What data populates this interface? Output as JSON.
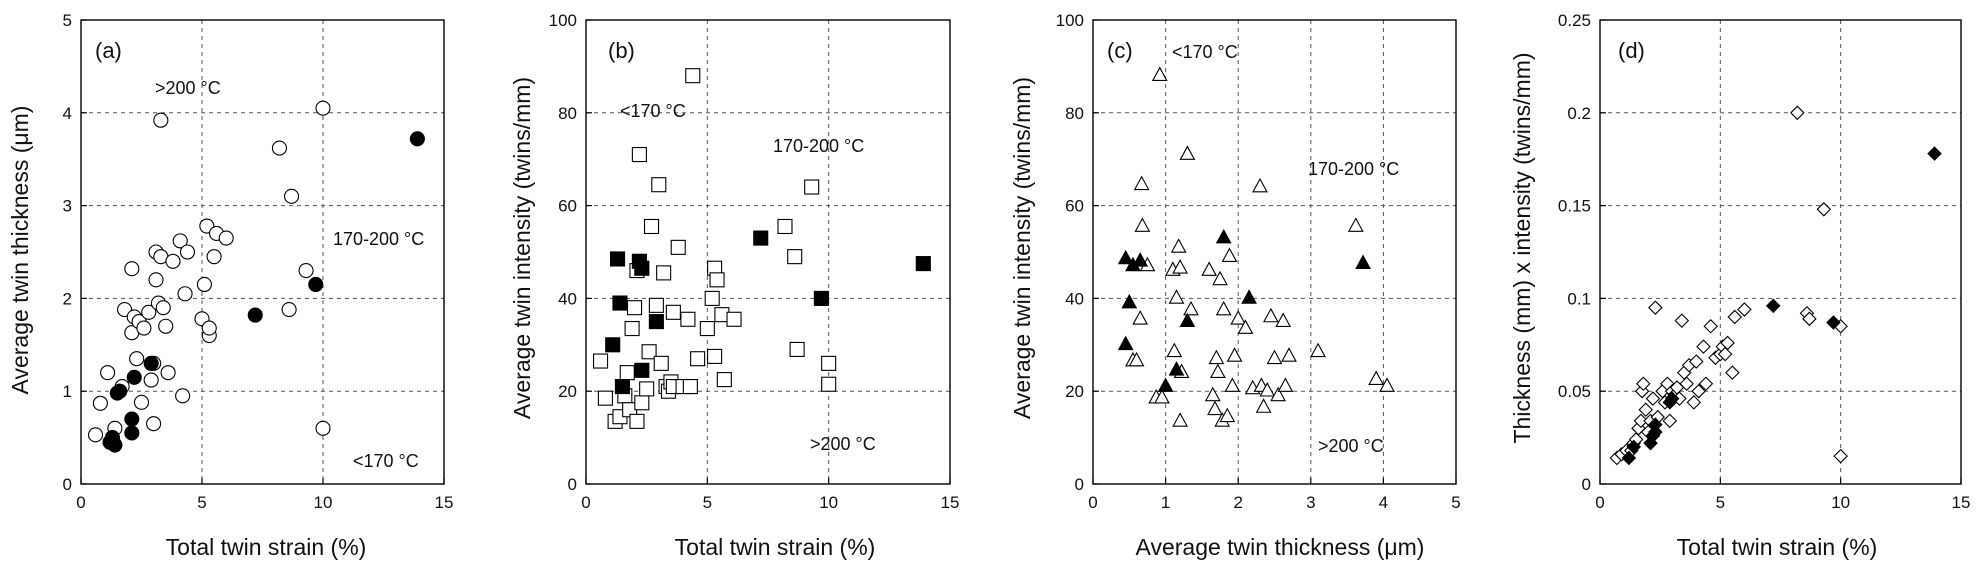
{
  "colors": {
    "mark": "#000000",
    "open_fill": "#ffffff",
    "grid": "#555555"
  },
  "chart_data": [
    {
      "type": "scatter",
      "panel_label": "(a)",
      "xlabel": "Total twin strain (%)",
      "ylabel": "Average twin thickness (μm)",
      "xlim": [
        0,
        15
      ],
      "ylim": [
        0,
        5
      ],
      "xticks": [
        0,
        5,
        10,
        15
      ],
      "yticks": [
        0,
        1,
        2,
        3,
        4,
        5
      ],
      "xtick_labels": [
        "0",
        "5",
        "10",
        "15"
      ],
      "ytick_labels": [
        "0",
        "1",
        "2",
        "3",
        "4",
        "5"
      ],
      "grid": true,
      "annotations": [
        ">200 °C",
        "170-200 °C",
        "<170 °C"
      ],
      "series": [
        {
          "marker": "circle",
          "filled": false,
          "points": [
            [
              0.6,
              0.53
            ],
            [
              0.8,
              0.87
            ],
            [
              1.1,
              1.2
            ],
            [
              1.4,
              0.6
            ],
            [
              1.7,
              1.05
            ],
            [
              1.8,
              1.88
            ],
            [
              2.1,
              1.63
            ],
            [
              2.1,
              2.32
            ],
            [
              2.2,
              1.8
            ],
            [
              2.3,
              1.35
            ],
            [
              2.4,
              1.75
            ],
            [
              2.5,
              0.88
            ],
            [
              2.6,
              1.68
            ],
            [
              2.8,
              1.85
            ],
            [
              2.9,
              1.12
            ],
            [
              3.0,
              1.3
            ],
            [
              3.0,
              0.65
            ],
            [
              3.1,
              2.2
            ],
            [
              3.1,
              2.5
            ],
            [
              3.2,
              1.95
            ],
            [
              3.3,
              2.45
            ],
            [
              3.3,
              3.92
            ],
            [
              3.4,
              1.9
            ],
            [
              3.5,
              1.7
            ],
            [
              3.6,
              1.2
            ],
            [
              3.8,
              2.4
            ],
            [
              4.1,
              2.62
            ],
            [
              4.2,
              0.95
            ],
            [
              4.3,
              2.05
            ],
            [
              4.4,
              2.5
            ],
            [
              5.0,
              1.78
            ],
            [
              5.1,
              2.15
            ],
            [
              5.2,
              2.78
            ],
            [
              5.3,
              1.6
            ],
            [
              5.3,
              1.68
            ],
            [
              5.5,
              2.45
            ],
            [
              5.6,
              2.7
            ],
            [
              6.0,
              2.65
            ],
            [
              8.2,
              3.62
            ],
            [
              8.6,
              1.88
            ],
            [
              8.7,
              3.1
            ],
            [
              9.3,
              2.3
            ],
            [
              10.0,
              4.05
            ],
            [
              10.0,
              0.6
            ]
          ]
        },
        {
          "marker": "circle",
          "filled": true,
          "points": [
            [
              1.2,
              0.45
            ],
            [
              1.3,
              0.5
            ],
            [
              1.4,
              0.42
            ],
            [
              1.5,
              0.98
            ],
            [
              1.6,
              1.0
            ],
            [
              2.1,
              0.55
            ],
            [
              2.1,
              0.7
            ],
            [
              2.2,
              1.15
            ],
            [
              2.9,
              1.3
            ],
            [
              7.2,
              1.82
            ],
            [
              9.7,
              2.15
            ],
            [
              13.9,
              3.72
            ]
          ]
        }
      ]
    },
    {
      "type": "scatter",
      "panel_label": "(b)",
      "xlabel": "Total twin strain (%)",
      "ylabel": "Average twin intensity (twins/mm)",
      "xlim": [
        0,
        15
      ],
      "ylim": [
        0,
        100
      ],
      "xticks": [
        0,
        5,
        10,
        15
      ],
      "yticks": [
        0,
        20,
        40,
        60,
        80,
        100
      ],
      "xtick_labels": [
        "0",
        "5",
        "10",
        "15"
      ],
      "ytick_labels": [
        "0",
        "20",
        "40",
        "60",
        "80",
        "100"
      ],
      "grid": true,
      "annotations": [
        "<170 °C",
        "170-200 °C",
        ">200 °C"
      ],
      "series": [
        {
          "marker": "square",
          "filled": false,
          "points": [
            [
              0.6,
              26.5
            ],
            [
              0.8,
              18.5
            ],
            [
              1.2,
              13.5
            ],
            [
              1.4,
              14.5
            ],
            [
              1.6,
              19.0
            ],
            [
              1.7,
              24.0
            ],
            [
              1.8,
              16.0
            ],
            [
              1.9,
              33.5
            ],
            [
              2.0,
              38.0
            ],
            [
              2.1,
              46.0
            ],
            [
              2.1,
              13.5
            ],
            [
              2.2,
              71.0
            ],
            [
              2.3,
              17.5
            ],
            [
              2.5,
              20.5
            ],
            [
              2.6,
              28.5
            ],
            [
              2.7,
              55.5
            ],
            [
              2.9,
              38.5
            ],
            [
              3.0,
              64.5
            ],
            [
              3.1,
              26.0
            ],
            [
              3.2,
              45.5
            ],
            [
              3.3,
              21.0
            ],
            [
              3.4,
              20.0
            ],
            [
              3.5,
              22.0
            ],
            [
              3.6,
              37.0
            ],
            [
              3.6,
              21.0
            ],
            [
              3.8,
              51.0
            ],
            [
              4.0,
              21.0
            ],
            [
              4.2,
              35.5
            ],
            [
              4.3,
              21.0
            ],
            [
              4.4,
              88.0
            ],
            [
              4.6,
              27.0
            ],
            [
              5.0,
              33.5
            ],
            [
              5.2,
              40.0
            ],
            [
              5.3,
              27.5
            ],
            [
              5.3,
              46.5
            ],
            [
              5.4,
              44.0
            ],
            [
              5.6,
              36.5
            ],
            [
              5.7,
              22.5
            ],
            [
              6.1,
              35.5
            ],
            [
              8.2,
              55.5
            ],
            [
              8.6,
              49.0
            ],
            [
              8.7,
              29.0
            ],
            [
              9.3,
              64.0
            ],
            [
              10.0,
              26.0
            ],
            [
              10.0,
              21.5
            ]
          ]
        },
        {
          "marker": "square",
          "filled": true,
          "points": [
            [
              1.1,
              30.0
            ],
            [
              1.3,
              48.5
            ],
            [
              1.4,
              39.0
            ],
            [
              1.5,
              21.0
            ],
            [
              2.2,
              48.0
            ],
            [
              2.3,
              46.5
            ],
            [
              2.3,
              24.5
            ],
            [
              2.9,
              35.0
            ],
            [
              7.2,
              53.0
            ],
            [
              9.7,
              40.0
            ],
            [
              13.9,
              47.5
            ]
          ]
        }
      ]
    },
    {
      "type": "scatter",
      "panel_label": "(c)",
      "xlabel": "Average twin thickness (μm)",
      "ylabel": "Average twin intensity (twins/mm)",
      "xlim": [
        0,
        5
      ],
      "ylim": [
        0,
        100
      ],
      "xticks": [
        0,
        1,
        2,
        3,
        4,
        5
      ],
      "yticks": [
        0,
        20,
        40,
        60,
        80,
        100
      ],
      "xtick_labels": [
        "0",
        "1",
        "2",
        "3",
        "4",
        "5"
      ],
      "ytick_labels": [
        "0",
        "20",
        "40",
        "60",
        "80",
        "100"
      ],
      "grid": true,
      "annotations": [
        "<170 °C",
        "170-200 °C",
        ">200 °C"
      ],
      "series": [
        {
          "marker": "triangle",
          "filled": false,
          "points": [
            [
              0.55,
              26.5
            ],
            [
              0.6,
              26.5
            ],
            [
              0.65,
              35.5
            ],
            [
              0.67,
              64.5
            ],
            [
              0.68,
              55.5
            ],
            [
              0.75,
              47.0
            ],
            [
              0.87,
              18.5
            ],
            [
              0.92,
              88.0
            ],
            [
              0.95,
              18.5
            ],
            [
              1.1,
              46.0
            ],
            [
              1.12,
              28.5
            ],
            [
              1.15,
              40.0
            ],
            [
              1.18,
              51.0
            ],
            [
              1.2,
              13.5
            ],
            [
              1.2,
              46.5
            ],
            [
              1.22,
              24.0
            ],
            [
              1.3,
              71.0
            ],
            [
              1.35,
              37.5
            ],
            [
              1.6,
              46.0
            ],
            [
              1.65,
              19.0
            ],
            [
              1.68,
              16.0
            ],
            [
              1.7,
              27.0
            ],
            [
              1.72,
              24.0
            ],
            [
              1.75,
              44.0
            ],
            [
              1.78,
              13.5
            ],
            [
              1.8,
              37.5
            ],
            [
              1.85,
              14.5
            ],
            [
              1.88,
              49.0
            ],
            [
              1.92,
              21.0
            ],
            [
              1.95,
              27.5
            ],
            [
              2.0,
              35.5
            ],
            [
              2.1,
              33.5
            ],
            [
              2.2,
              20.5
            ],
            [
              2.3,
              64.0
            ],
            [
              2.32,
              21.0
            ],
            [
              2.35,
              16.5
            ],
            [
              2.4,
              20.0
            ],
            [
              2.45,
              36.0
            ],
            [
              2.5,
              27.0
            ],
            [
              2.55,
              19.0
            ],
            [
              2.62,
              35.0
            ],
            [
              2.65,
              21.0
            ],
            [
              2.7,
              27.5
            ],
            [
              3.1,
              28.5
            ],
            [
              3.62,
              55.5
            ],
            [
              3.9,
              22.5
            ],
            [
              4.05,
              21.0
            ]
          ]
        },
        {
          "marker": "triangle",
          "filled": true,
          "points": [
            [
              0.45,
              30.0
            ],
            [
              0.45,
              48.5
            ],
            [
              0.5,
              39.0
            ],
            [
              0.55,
              47.0
            ],
            [
              0.65,
              48.0
            ],
            [
              1.0,
              21.0
            ],
            [
              1.15,
              24.5
            ],
            [
              1.3,
              35.0
            ],
            [
              1.8,
              53.0
            ],
            [
              2.15,
              40.0
            ],
            [
              3.72,
              47.5
            ]
          ]
        }
      ]
    },
    {
      "type": "scatter",
      "panel_label": "(d)",
      "xlabel": "Total twin strain (%)",
      "ylabel": "Thickness (mm) x intensity (twins/mm)",
      "xlim": [
        0,
        15
      ],
      "ylim": [
        0,
        0.25
      ],
      "xticks": [
        0,
        5,
        10,
        15
      ],
      "yticks": [
        0,
        0.05,
        0.1,
        0.15,
        0.2,
        0.25
      ],
      "xtick_labels": [
        "0",
        "5",
        "10",
        "15"
      ],
      "ytick_labels": [
        "0",
        "0.05",
        "0.1",
        "0.15",
        "0.2",
        "0.25"
      ],
      "grid": true,
      "annotations": [],
      "series": [
        {
          "marker": "diamond",
          "filled": false,
          "points": [
            [
              0.7,
              0.014
            ],
            [
              0.9,
              0.016
            ],
            [
              1.1,
              0.018
            ],
            [
              1.3,
              0.018
            ],
            [
              1.4,
              0.022
            ],
            [
              1.5,
              0.024
            ],
            [
              1.6,
              0.03
            ],
            [
              1.7,
              0.034
            ],
            [
              1.75,
              0.05
            ],
            [
              1.8,
              0.054
            ],
            [
              1.9,
              0.04
            ],
            [
              2.0,
              0.028
            ],
            [
              2.1,
              0.034
            ],
            [
              2.2,
              0.046
            ],
            [
              2.3,
              0.095
            ],
            [
              2.4,
              0.036
            ],
            [
              2.6,
              0.05
            ],
            [
              2.7,
              0.044
            ],
            [
              2.8,
              0.054
            ],
            [
              2.9,
              0.034
            ],
            [
              3.0,
              0.05
            ],
            [
              3.1,
              0.048
            ],
            [
              3.2,
              0.052
            ],
            [
              3.3,
              0.046
            ],
            [
              3.4,
              0.088
            ],
            [
              3.5,
              0.06
            ],
            [
              3.6,
              0.054
            ],
            [
              3.7,
              0.064
            ],
            [
              3.9,
              0.044
            ],
            [
              4.0,
              0.066
            ],
            [
              4.1,
              0.05
            ],
            [
              4.3,
              0.074
            ],
            [
              4.4,
              0.054
            ],
            [
              4.6,
              0.085
            ],
            [
              4.8,
              0.068
            ],
            [
              5.0,
              0.07
            ],
            [
              5.1,
              0.074
            ],
            [
              5.2,
              0.07
            ],
            [
              5.3,
              0.076
            ],
            [
              5.5,
              0.06
            ],
            [
              5.6,
              0.09
            ],
            [
              6.0,
              0.094
            ],
            [
              8.2,
              0.2
            ],
            [
              8.6,
              0.092
            ],
            [
              8.7,
              0.089
            ],
            [
              9.3,
              0.148
            ],
            [
              10.0,
              0.085
            ],
            [
              10.0,
              0.015
            ]
          ]
        },
        {
          "marker": "diamond",
          "filled": true,
          "points": [
            [
              1.2,
              0.014
            ],
            [
              1.4,
              0.02
            ],
            [
              2.1,
              0.022
            ],
            [
              2.2,
              0.026
            ],
            [
              2.3,
              0.028
            ],
            [
              2.3,
              0.032
            ],
            [
              2.9,
              0.044
            ],
            [
              3.0,
              0.046
            ],
            [
              7.2,
              0.096
            ],
            [
              9.7,
              0.087
            ],
            [
              13.9,
              0.178
            ]
          ]
        }
      ]
    }
  ]
}
